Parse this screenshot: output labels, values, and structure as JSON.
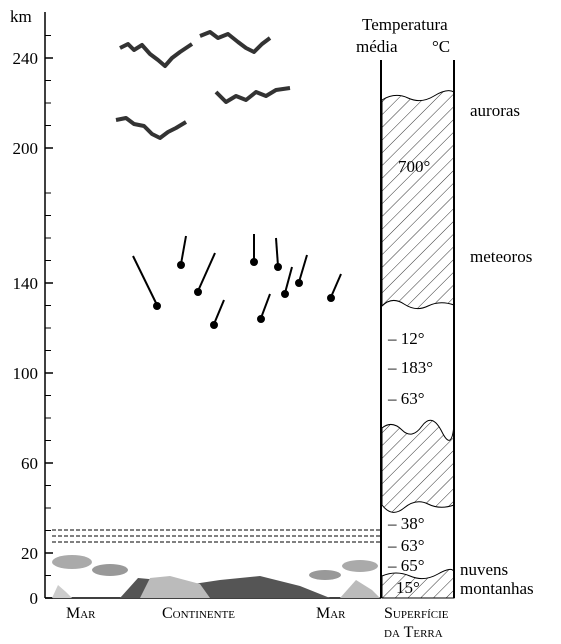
{
  "axis": {
    "unit": "km",
    "ticks": [
      0,
      20,
      60,
      100,
      140,
      200,
      240
    ]
  },
  "column": {
    "header_line1": "Temperatura",
    "header_line2": "média",
    "unit": "°C"
  },
  "temperatures": [
    "700°",
    "– 12°",
    "– 183°",
    "– 63°",
    "– 38°",
    "– 63°",
    "– 65°",
    "15°"
  ],
  "labels": {
    "auroras": "auroras",
    "meteoros": "meteoros",
    "nuvens": "nuvens",
    "montanhas": "montanhas"
  },
  "bottom": {
    "left": "Mar",
    "center": "Continente",
    "right": "Mar",
    "surface_line1": "Superfície",
    "surface_line2": "da Terra"
  }
}
